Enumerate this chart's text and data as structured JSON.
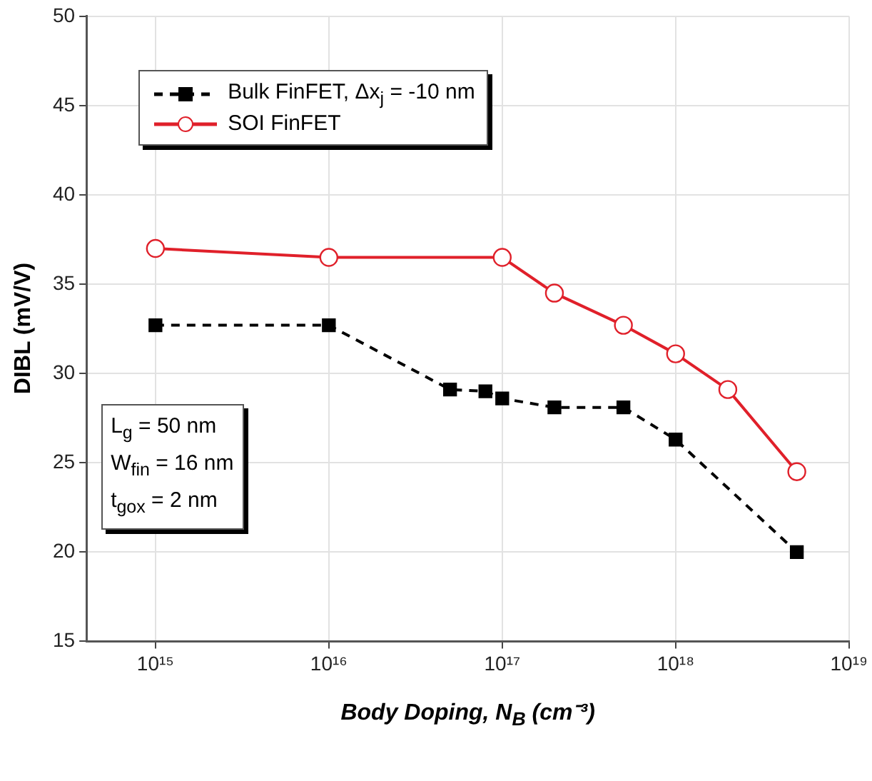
{
  "chart_data": {
    "type": "line",
    "xlabel": "Body Doping, N$_{B}$ (cm⁻³)",
    "ylabel": "DIBL  (mV/V)",
    "series": [
      {
        "name": "Bulk FinFET, Δx$_{j}$ = -10 nm",
        "color": "#000000",
        "line_style": "dashed",
        "marker": "square",
        "x": [
          1000000000000000.0,
          1e+16,
          5e+16,
          8e+16,
          1e+17,
          2e+17,
          5e+17,
          1e+18,
          5e+18
        ],
        "values": [
          32.7,
          32.7,
          29.1,
          29.0,
          28.6,
          28.1,
          28.1,
          26.3,
          20.0
        ]
      },
      {
        "name": "SOI FinFET",
        "color": "#e0202a",
        "line_style": "solid",
        "marker": "circle",
        "x": [
          1000000000000000.0,
          1e+16,
          1e+17,
          2e+17,
          5e+17,
          1e+18,
          2e+18,
          5e+18
        ],
        "values": [
          37.0,
          36.5,
          36.5,
          34.5,
          32.7,
          31.1,
          29.1,
          24.5
        ]
      }
    ],
    "log": "x",
    "xlim": [
      400000000000000.0,
      1e+19
    ],
    "xticks": [
      {
        "value": 1000000000000000.0,
        "label": "10¹⁵"
      },
      {
        "value": 1e+16,
        "label": "10¹⁶"
      },
      {
        "value": 1e+17,
        "label": "10¹⁷"
      },
      {
        "value": 1e+18,
        "label": "10¹⁸"
      },
      {
        "value": 1e+19,
        "label": "10¹⁹"
      }
    ],
    "ylim": [
      15,
      50
    ],
    "yticks": [
      15,
      20,
      25,
      30,
      35,
      40,
      45,
      50
    ],
    "grid": true,
    "legend": "top left",
    "annotations": [
      "L$_{g}$ = 50 nm",
      "W$_{fin}$ = 16 nm",
      "t$_{gox}$ = 2 nm"
    ]
  }
}
